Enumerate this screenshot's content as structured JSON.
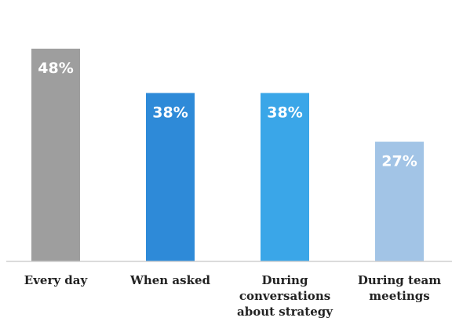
{
  "chart_data": {
    "type": "bar",
    "categories": [
      [
        "Every day"
      ],
      [
        "When asked"
      ],
      [
        "During",
        "conversations",
        "about strategy"
      ],
      [
        "During team",
        "meetings"
      ]
    ],
    "values": [
      48,
      38,
      38,
      27
    ],
    "value_labels": [
      "48%",
      "38%",
      "38%",
      "27%"
    ],
    "colors": [
      "#9e9e9e",
      "#2e8ad8",
      "#3aa6e8",
      "#a2c4e6"
    ],
    "ylim": [
      0,
      48
    ],
    "grid": false,
    "legend": "none"
  }
}
